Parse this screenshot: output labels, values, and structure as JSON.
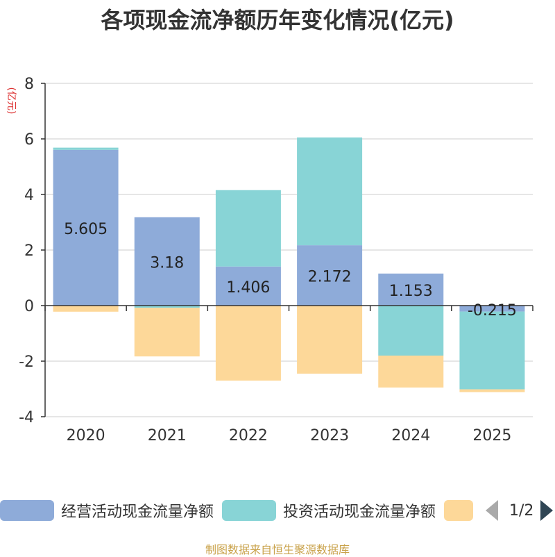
{
  "title": "各项现金流净额历年变化情况(亿元)",
  "source": "制图数据来自恒生聚源数据库",
  "legend_pager": "1/2",
  "chart_data": {
    "type": "bar",
    "stacked": true,
    "title": "各项现金流净额历年变化情况(亿元)",
    "ylabel": "(亿元)",
    "ylim": [
      -4,
      8
    ],
    "yticks": [
      -4,
      -2,
      0,
      2,
      4,
      6,
      8
    ],
    "grid": true,
    "legend_position": "bottom",
    "categories": [
      "2020",
      "2021",
      "2022",
      "2023",
      "2024",
      "2025"
    ],
    "series": [
      {
        "name": "经营活动现金流量净额",
        "color": "#8eabd9",
        "values": [
          5.605,
          3.18,
          1.406,
          2.172,
          1.153,
          -0.215
        ],
        "labels": [
          "5.605",
          "3.18",
          "1.406",
          "2.172",
          "1.153",
          "-0.215"
        ]
      },
      {
        "name": "投资活动现金流量净额",
        "color": "#88d4d6",
        "values": [
          0.08,
          -0.08,
          2.75,
          3.88,
          -1.8,
          -2.8
        ]
      },
      {
        "name": "",
        "color": "#fdd899",
        "values": [
          -0.22,
          -1.75,
          -2.7,
          -2.45,
          -1.15,
          -0.1
        ]
      }
    ]
  }
}
